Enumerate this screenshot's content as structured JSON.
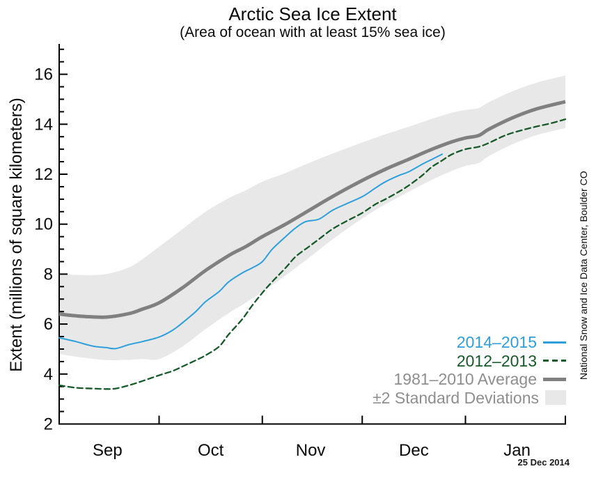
{
  "header": {
    "title": "Arctic Sea Ice Extent",
    "subtitle": "(Area of ocean with at least 15% sea ice)"
  },
  "y_axis_label": "Extent (millions of square kilometers)",
  "credit_vertical": "National Snow and Ice Data Center, Boulder CO",
  "date_stamp": "25 Dec 2014",
  "colors": {
    "line_2014": "#2d9fdb",
    "line_2012": "#175a2a",
    "line_avg": "#808080",
    "band": "#e8e8e8",
    "legend_gray_text": "#8e8e8e",
    "axis": "#000000"
  },
  "legend": {
    "items": [
      {
        "label": "2014–2015",
        "swatch": "solid-line",
        "color_key": "line_2014",
        "text_color_key": "line_2014"
      },
      {
        "label": "2012–2013",
        "swatch": "dashed-line",
        "color_key": "line_2012",
        "text_color_key": "line_2012"
      },
      {
        "label": "1981–2010 Average",
        "swatch": "thick-line",
        "color_key": "line_avg",
        "text_color_key": "legend_gray_text"
      },
      {
        "label": "±2 Standard Deviations",
        "swatch": "box",
        "color_key": "band",
        "text_color_key": "legend_gray_text"
      }
    ]
  },
  "chart_data": {
    "type": "line",
    "title": "Arctic Sea Ice Extent",
    "subtitle": "(Area of ocean with at least 15% sea ice)",
    "ylabel": "Extent (millions of square kilometers)",
    "x_unit": "days since Sep 1",
    "x_domain": [
      0,
      152
    ],
    "ylim": [
      2,
      17.2
    ],
    "grid": false,
    "legend_position": "lower right",
    "y_major_ticks": [
      2,
      4,
      6,
      8,
      10,
      12,
      14,
      16
    ],
    "y_minor_step": 0.5,
    "x_ticks_days": [
      30,
      61,
      91,
      122,
      152
    ],
    "x_month_labels": [
      {
        "label": "Sep",
        "day": 14.5
      },
      {
        "label": "Oct",
        "day": 45.5
      },
      {
        "label": "Nov",
        "day": 75.5
      },
      {
        "label": "Dec",
        "day": 106.5
      },
      {
        "label": "Jan",
        "day": 137.5
      }
    ],
    "average": {
      "name": "1981–2010 Average",
      "color_key": "line_avg",
      "days": [
        0,
        7,
        14,
        21,
        25,
        30,
        37,
        44,
        51,
        56,
        61,
        68,
        75,
        82,
        91,
        98,
        105,
        112,
        118,
        122,
        126,
        129,
        136,
        143,
        152
      ],
      "values": [
        6.4,
        6.31,
        6.28,
        6.42,
        6.6,
        6.85,
        7.45,
        8.15,
        8.75,
        9.1,
        9.5,
        10.0,
        10.55,
        11.1,
        11.75,
        12.2,
        12.6,
        13.0,
        13.3,
        13.45,
        13.55,
        13.8,
        14.25,
        14.6,
        14.9
      ],
      "two_sigma": [
        1.6,
        1.65,
        1.72,
        1.85,
        2.0,
        2.25,
        2.35,
        2.35,
        2.3,
        2.25,
        2.2,
        2.05,
        1.9,
        1.72,
        1.52,
        1.4,
        1.3,
        1.22,
        1.16,
        1.12,
        1.1,
        1.08,
        1.06,
        1.05,
        1.05
      ],
      "band_name": "±2 Standard Deviations"
    },
    "series": [
      {
        "name": "2014–2015",
        "style": "solid",
        "color_key": "line_2014",
        "days": [
          0,
          5,
          10,
          14,
          17,
          21,
          25,
          30,
          34,
          37,
          41,
          44,
          48,
          51,
          55,
          58,
          61,
          64,
          68,
          71,
          74,
          78,
          82,
          86,
          91,
          95,
          98,
          102,
          105,
          109,
          112,
          115
        ],
        "values": [
          5.45,
          5.3,
          5.12,
          5.06,
          5.02,
          5.18,
          5.3,
          5.48,
          5.75,
          6.05,
          6.5,
          6.9,
          7.3,
          7.7,
          8.05,
          8.25,
          8.5,
          9.0,
          9.5,
          9.85,
          10.1,
          10.2,
          10.55,
          10.8,
          11.1,
          11.45,
          11.7,
          11.95,
          12.1,
          12.4,
          12.6,
          12.8
        ]
      },
      {
        "name": "2012–2013",
        "style": "dashed",
        "color_key": "line_2012",
        "days": [
          0,
          5,
          10,
          14,
          17,
          21,
          25,
          30,
          34,
          37,
          41,
          44,
          48,
          51,
          55,
          58,
          61,
          64,
          68,
          71,
          75,
          78,
          82,
          86,
          91,
          95,
          98,
          102,
          105,
          109,
          112,
          115,
          118,
          122,
          126,
          129,
          133,
          136,
          140,
          143,
          148,
          152
        ],
        "values": [
          3.55,
          3.45,
          3.42,
          3.4,
          3.42,
          3.55,
          3.72,
          3.95,
          4.12,
          4.3,
          4.55,
          4.75,
          5.1,
          5.6,
          6.2,
          6.75,
          7.25,
          7.7,
          8.25,
          8.7,
          9.1,
          9.4,
          9.8,
          10.1,
          10.45,
          10.8,
          11.0,
          11.3,
          11.55,
          11.95,
          12.3,
          12.55,
          12.8,
          13.0,
          13.1,
          13.25,
          13.5,
          13.65,
          13.8,
          13.9,
          14.05,
          14.2
        ]
      }
    ]
  }
}
